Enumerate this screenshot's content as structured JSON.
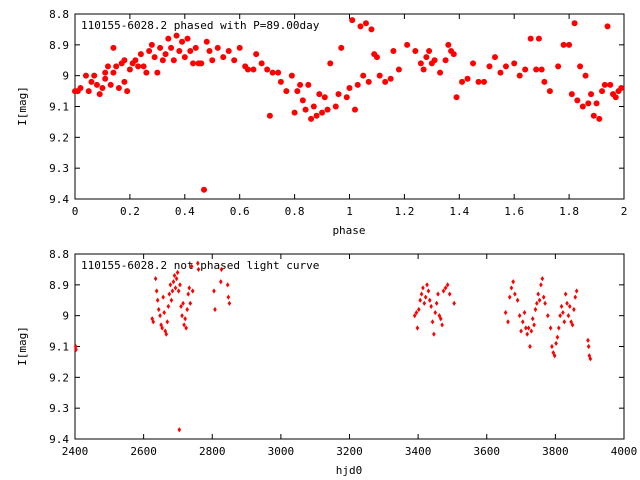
{
  "chart_data": [
    {
      "type": "scatter",
      "title": "110155-6028.2 phased with P=89.00day",
      "xlabel": "phase",
      "ylabel": "I[mag]",
      "xlim": [
        0,
        2
      ],
      "ylim": [
        9.4,
        8.8
      ],
      "y_inverted": true,
      "grid": false,
      "xticks": [
        0,
        0.2,
        0.4,
        0.6,
        0.8,
        1,
        1.2,
        1.4,
        1.6,
        1.8,
        2
      ],
      "xtick_labels": [
        "0",
        "0.2",
        "0.4",
        "0.6",
        "0.8",
        "1",
        "1.2",
        "1.4",
        "1.6",
        "1.8",
        "2"
      ],
      "yticks": [
        8.8,
        8.9,
        9,
        9.1,
        9.2,
        9.3,
        9.4
      ],
      "ytick_labels": [
        "8.8",
        "8.9",
        "9",
        "9.1",
        "9.2",
        "9.3",
        "9.4"
      ],
      "marker_color": "#ff0000",
      "marker": "filled-circle",
      "points": [
        [
          0.0,
          9.05
        ],
        [
          0.01,
          9.05
        ],
        [
          0.02,
          9.04
        ],
        [
          0.04,
          9.0
        ],
        [
          0.05,
          9.05
        ],
        [
          0.06,
          9.02
        ],
        [
          0.07,
          9.0
        ],
        [
          0.08,
          9.03
        ],
        [
          0.09,
          9.06
        ],
        [
          0.1,
          9.04
        ],
        [
          0.11,
          8.99
        ],
        [
          0.11,
          9.01
        ],
        [
          0.12,
          8.97
        ],
        [
          0.13,
          9.03
        ],
        [
          0.14,
          8.91
        ],
        [
          0.14,
          8.99
        ],
        [
          0.15,
          8.97
        ],
        [
          0.16,
          9.04
        ],
        [
          0.17,
          8.96
        ],
        [
          0.18,
          9.02
        ],
        [
          0.18,
          8.95
        ],
        [
          0.19,
          9.05
        ],
        [
          0.2,
          8.98
        ],
        [
          0.21,
          8.96
        ],
        [
          0.22,
          8.95
        ],
        [
          0.23,
          8.97
        ],
        [
          0.24,
          8.93
        ],
        [
          0.25,
          8.97
        ],
        [
          0.26,
          8.99
        ],
        [
          0.27,
          8.92
        ],
        [
          0.28,
          8.9
        ],
        [
          0.29,
          8.94
        ],
        [
          0.3,
          8.99
        ],
        [
          0.31,
          8.91
        ],
        [
          0.32,
          8.95
        ],
        [
          0.33,
          8.93
        ],
        [
          0.34,
          8.88
        ],
        [
          0.35,
          8.91
        ],
        [
          0.36,
          8.95
        ],
        [
          0.37,
          8.87
        ],
        [
          0.38,
          8.92
        ],
        [
          0.39,
          8.89
        ],
        [
          0.4,
          8.94
        ],
        [
          0.41,
          8.88
        ],
        [
          0.42,
          8.92
        ],
        [
          0.43,
          8.96
        ],
        [
          0.44,
          8.91
        ],
        [
          0.45,
          8.96
        ],
        [
          0.46,
          8.96
        ],
        [
          0.47,
          9.37
        ],
        [
          0.48,
          8.89
        ],
        [
          0.49,
          8.92
        ],
        [
          0.5,
          8.95
        ],
        [
          0.52,
          8.91
        ],
        [
          0.54,
          8.94
        ],
        [
          0.56,
          8.92
        ],
        [
          0.58,
          8.95
        ],
        [
          0.6,
          8.91
        ],
        [
          0.62,
          8.97
        ],
        [
          0.63,
          8.98
        ],
        [
          0.65,
          8.98
        ],
        [
          0.66,
          8.93
        ],
        [
          0.68,
          8.96
        ],
        [
          0.7,
          8.98
        ],
        [
          0.71,
          9.13
        ],
        [
          0.72,
          8.99
        ],
        [
          0.74,
          8.99
        ],
        [
          0.75,
          9.02
        ],
        [
          0.77,
          9.05
        ],
        [
          0.79,
          9.0
        ],
        [
          0.8,
          9.12
        ],
        [
          0.81,
          9.05
        ],
        [
          0.82,
          9.03
        ],
        [
          0.83,
          9.08
        ],
        [
          0.84,
          9.11
        ],
        [
          0.85,
          9.03
        ],
        [
          0.86,
          9.14
        ],
        [
          0.87,
          9.1
        ],
        [
          0.88,
          9.13
        ],
        [
          0.89,
          9.06
        ],
        [
          0.9,
          9.12
        ],
        [
          0.91,
          9.07
        ],
        [
          0.92,
          9.11
        ],
        [
          0.93,
          8.96
        ],
        [
          0.95,
          9.1
        ],
        [
          0.96,
          9.06
        ],
        [
          0.97,
          8.91
        ],
        [
          0.99,
          9.07
        ],
        [
          1.0,
          9.04
        ],
        [
          1.01,
          8.82
        ],
        [
          1.02,
          9.11
        ],
        [
          1.03,
          9.03
        ],
        [
          1.04,
          8.84
        ],
        [
          1.05,
          9.0
        ],
        [
          1.06,
          8.83
        ],
        [
          1.07,
          9.02
        ],
        [
          1.08,
          8.85
        ],
        [
          1.09,
          8.93
        ],
        [
          1.1,
          8.94
        ],
        [
          1.11,
          9.0
        ],
        [
          1.13,
          9.02
        ],
        [
          1.15,
          9.01
        ],
        [
          1.16,
          8.92
        ],
        [
          1.18,
          8.98
        ],
        [
          1.21,
          8.9
        ],
        [
          1.24,
          8.92
        ],
        [
          1.26,
          8.96
        ],
        [
          1.27,
          8.98
        ],
        [
          1.28,
          8.94
        ],
        [
          1.29,
          8.92
        ],
        [
          1.3,
          8.96
        ],
        [
          1.31,
          8.95
        ],
        [
          1.33,
          8.99
        ],
        [
          1.35,
          8.95
        ],
        [
          1.36,
          8.9
        ],
        [
          1.37,
          8.92
        ],
        [
          1.38,
          8.93
        ],
        [
          1.39,
          9.07
        ],
        [
          1.41,
          9.02
        ],
        [
          1.43,
          9.01
        ],
        [
          1.45,
          8.96
        ],
        [
          1.47,
          9.02
        ],
        [
          1.49,
          9.02
        ],
        [
          1.51,
          8.97
        ],
        [
          1.53,
          8.94
        ],
        [
          1.55,
          8.99
        ],
        [
          1.57,
          8.97
        ],
        [
          1.6,
          8.96
        ],
        [
          1.62,
          9.0
        ],
        [
          1.64,
          8.98
        ],
        [
          1.66,
          8.88
        ],
        [
          1.68,
          8.98
        ],
        [
          1.69,
          8.88
        ],
        [
          1.7,
          8.98
        ],
        [
          1.71,
          9.02
        ],
        [
          1.73,
          9.05
        ],
        [
          1.76,
          8.97
        ],
        [
          1.78,
          8.9
        ],
        [
          1.8,
          8.9
        ],
        [
          1.81,
          9.06
        ],
        [
          1.82,
          8.83
        ],
        [
          1.83,
          9.08
        ],
        [
          1.84,
          8.97
        ],
        [
          1.85,
          9.1
        ],
        [
          1.86,
          9.0
        ],
        [
          1.87,
          9.09
        ],
        [
          1.88,
          9.06
        ],
        [
          1.89,
          9.13
        ],
        [
          1.9,
          9.09
        ],
        [
          1.91,
          9.14
        ],
        [
          1.92,
          9.05
        ],
        [
          1.93,
          9.03
        ],
        [
          1.94,
          8.84
        ],
        [
          1.95,
          9.03
        ],
        [
          1.96,
          9.06
        ],
        [
          1.97,
          9.07
        ],
        [
          1.98,
          9.05
        ],
        [
          1.99,
          9.04
        ]
      ]
    },
    {
      "type": "scatter",
      "title": "110155-6028.2 not phased light curve",
      "xlabel": "hjd0",
      "ylabel": "I[mag]",
      "xlim": [
        2400,
        4000
      ],
      "ylim": [
        9.4,
        8.8
      ],
      "y_inverted": true,
      "grid": false,
      "xticks": [
        2400,
        2600,
        2800,
        3000,
        3200,
        3400,
        3600,
        3800,
        4000
      ],
      "xtick_labels": [
        "2400",
        "2600",
        "2800",
        "3000",
        "3200",
        "3400",
        "3600",
        "3800",
        "4000"
      ],
      "yticks": [
        8.8,
        8.9,
        9,
        9.1,
        9.2,
        9.3,
        9.4
      ],
      "ytick_labels": [
        "8.8",
        "8.9",
        "9",
        "9.1",
        "9.2",
        "9.3",
        "9.4"
      ],
      "marker_color": "#ff0000",
      "marker": "diamond",
      "points": [
        [
          2402,
          9.1
        ],
        [
          2403,
          9.11
        ],
        [
          2625,
          9.01
        ],
        [
          2628,
          9.02
        ],
        [
          2635,
          8.88
        ],
        [
          2638,
          8.92
        ],
        [
          2641,
          8.95
        ],
        [
          2644,
          8.98
        ],
        [
          2648,
          9.0
        ],
        [
          2651,
          9.03
        ],
        [
          2654,
          9.04
        ],
        [
          2657,
          8.94
        ],
        [
          2660,
          8.99
        ],
        [
          2663,
          9.05
        ],
        [
          2666,
          9.06
        ],
        [
          2669,
          9.02
        ],
        [
          2672,
          8.97
        ],
        [
          2675,
          8.93
        ],
        [
          2678,
          8.9
        ],
        [
          2681,
          8.95
        ],
        [
          2684,
          8.92
        ],
        [
          2687,
          8.89
        ],
        [
          2690,
          8.87
        ],
        [
          2693,
          8.91
        ],
        [
          2696,
          8.88
        ],
        [
          2699,
          8.86
        ],
        [
          2702,
          8.92
        ],
        [
          2704,
          9.37
        ],
        [
          2706,
          8.9
        ],
        [
          2709,
          8.97
        ],
        [
          2712,
          9.0
        ],
        [
          2715,
          8.96
        ],
        [
          2718,
          9.03
        ],
        [
          2721,
          9.01
        ],
        [
          2724,
          9.04
        ],
        [
          2727,
          8.98
        ],
        [
          2730,
          8.93
        ],
        [
          2733,
          8.91
        ],
        [
          2736,
          8.96
        ],
        [
          2740,
          8.84
        ],
        [
          2743,
          8.92
        ],
        [
          2758,
          8.83
        ],
        [
          2760,
          8.85
        ],
        [
          2805,
          8.92
        ],
        [
          2808,
          8.98
        ],
        [
          2825,
          8.89
        ],
        [
          2827,
          8.85
        ],
        [
          2845,
          8.9
        ],
        [
          2847,
          8.94
        ],
        [
          2850,
          8.96
        ],
        [
          3390,
          9.0
        ],
        [
          3395,
          8.99
        ],
        [
          3398,
          9.04
        ],
        [
          3402,
          8.98
        ],
        [
          3406,
          8.95
        ],
        [
          3410,
          8.93
        ],
        [
          3414,
          8.91
        ],
        [
          3418,
          8.96
        ],
        [
          3422,
          8.94
        ],
        [
          3426,
          8.9
        ],
        [
          3430,
          8.92
        ],
        [
          3434,
          8.95
        ],
        [
          3438,
          8.97
        ],
        [
          3442,
          9.02
        ],
        [
          3446,
          9.06
        ],
        [
          3450,
          8.99
        ],
        [
          3454,
          8.96
        ],
        [
          3458,
          8.93
        ],
        [
          3462,
          9.0
        ],
        [
          3466,
          9.01
        ],
        [
          3470,
          9.03
        ],
        [
          3474,
          8.92
        ],
        [
          3480,
          8.91
        ],
        [
          3486,
          8.9
        ],
        [
          3492,
          8.93
        ],
        [
          3505,
          8.96
        ],
        [
          3655,
          8.99
        ],
        [
          3662,
          9.02
        ],
        [
          3667,
          8.94
        ],
        [
          3672,
          8.91
        ],
        [
          3677,
          8.89
        ],
        [
          3682,
          8.93
        ],
        [
          3690,
          8.95
        ],
        [
          3696,
          9.0
        ],
        [
          3700,
          9.05
        ],
        [
          3705,
          9.02
        ],
        [
          3710,
          8.99
        ],
        [
          3714,
          9.04
        ],
        [
          3718,
          9.06
        ],
        [
          3722,
          9.04
        ],
        [
          3726,
          9.1
        ],
        [
          3730,
          9.05
        ],
        [
          3734,
          9.01
        ],
        [
          3738,
          9.03
        ],
        [
          3742,
          8.98
        ],
        [
          3746,
          8.96
        ],
        [
          3750,
          8.93
        ],
        [
          3754,
          8.95
        ],
        [
          3758,
          8.9
        ],
        [
          3762,
          8.88
        ],
        [
          3766,
          8.94
        ],
        [
          3770,
          8.96
        ],
        [
          3778,
          9.0
        ],
        [
          3786,
          9.04
        ],
        [
          3790,
          9.1
        ],
        [
          3794,
          9.12
        ],
        [
          3798,
          9.13
        ],
        [
          3802,
          9.09
        ],
        [
          3806,
          9.07
        ],
        [
          3810,
          9.04
        ],
        [
          3814,
          9.0
        ],
        [
          3818,
          8.97
        ],
        [
          3822,
          8.99
        ],
        [
          3826,
          9.02
        ],
        [
          3830,
          8.93
        ],
        [
          3834,
          8.96
        ],
        [
          3838,
          9.0
        ],
        [
          3842,
          8.97
        ],
        [
          3846,
          9.02
        ],
        [
          3850,
          9.03
        ],
        [
          3854,
          8.98
        ],
        [
          3858,
          8.94
        ],
        [
          3862,
          8.92
        ],
        [
          3895,
          9.08
        ],
        [
          3897,
          9.1
        ],
        [
          3899,
          9.13
        ],
        [
          3902,
          9.14
        ]
      ]
    }
  ]
}
